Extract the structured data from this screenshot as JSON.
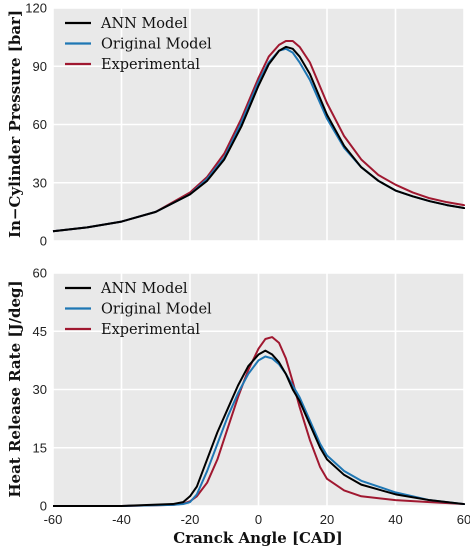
{
  "chart_data": [
    {
      "type": "line",
      "ylabel": "In−Cylinder Pressure [bar]",
      "xlabel": "",
      "xlim": [
        -60,
        60
      ],
      "ylim": [
        0,
        120
      ],
      "xticks": [
        "-60",
        "-40",
        "-20",
        "0",
        "20",
        "40",
        "60"
      ],
      "yticks": [
        "0",
        "30",
        "60",
        "90",
        "120"
      ],
      "grid": true,
      "legend": "top-left",
      "series": [
        {
          "name": "ANN Model",
          "color": "#000000",
          "x": [
            -61,
            -50,
            -40,
            -30,
            -20,
            -15,
            -10,
            -5,
            0,
            3,
            6,
            8,
            10,
            12,
            15,
            20,
            25,
            30,
            35,
            40,
            45,
            50,
            55,
            60,
            61
          ],
          "y": [
            5,
            7,
            10,
            15,
            24,
            31,
            42,
            59,
            80,
            91,
            98,
            100,
            99,
            95,
            86,
            65,
            49,
            38,
            31,
            26,
            23,
            20.5,
            18.5,
            17,
            16.5
          ]
        },
        {
          "name": "Original Model",
          "color": "#1f77b4",
          "x": [
            -61,
            -50,
            -40,
            -30,
            -20,
            -15,
            -10,
            -5,
            0,
            3,
            6,
            8,
            10,
            12,
            15,
            20,
            25,
            30,
            35,
            40,
            45,
            50,
            55,
            60,
            61
          ],
          "y": [
            5,
            7,
            10,
            15,
            24,
            32,
            43,
            61,
            82,
            92,
            98,
            99,
            97,
            92,
            83,
            63,
            48,
            38,
            31,
            26,
            23,
            20.5,
            18.5,
            17,
            16.5
          ]
        },
        {
          "name": "Experimental",
          "color": "#a01830",
          "x": [
            -61,
            -50,
            -40,
            -30,
            -20,
            -15,
            -10,
            -5,
            0,
            3,
            6,
            8,
            10,
            12,
            15,
            20,
            25,
            30,
            35,
            40,
            45,
            50,
            55,
            60,
            61
          ],
          "y": [
            5,
            7,
            10,
            15,
            25,
            33,
            45,
            63,
            84,
            95,
            101,
            103,
            103,
            100,
            92,
            71,
            54,
            42,
            34,
            29,
            25,
            22,
            20,
            18.5,
            18
          ]
        }
      ]
    },
    {
      "type": "line",
      "ylabel": "Heat Release Rate [J/deg]",
      "xlabel": "Cranck Angle [CAD]",
      "xlim": [
        -60,
        60
      ],
      "ylim": [
        0,
        60
      ],
      "xticks": [
        "-60",
        "-40",
        "-20",
        "0",
        "20",
        "40",
        "60"
      ],
      "yticks": [
        "0",
        "15",
        "30",
        "45",
        "60"
      ],
      "grid": true,
      "legend": "top-left",
      "series": [
        {
          "name": "ANN Model",
          "color": "#000000",
          "x": [
            -61,
            -40,
            -25,
            -22,
            -20,
            -18,
            -15,
            -12,
            -9,
            -6,
            -3,
            0,
            2,
            4,
            6,
            8,
            10,
            12,
            15,
            18,
            20,
            25,
            30,
            40,
            50,
            60,
            61
          ],
          "y": [
            0,
            0,
            0.5,
            1,
            2.5,
            5,
            12,
            19,
            25,
            31,
            36,
            39,
            40,
            39,
            37,
            34,
            30,
            27,
            21,
            15,
            12,
            8,
            5.5,
            3,
            1.5,
            0.5,
            0.3
          ]
        },
        {
          "name": "Original Model",
          "color": "#1f77b4",
          "x": [
            -61,
            -40,
            -25,
            -22,
            -20,
            -18,
            -15,
            -12,
            -9,
            -6,
            -3,
            0,
            2,
            4,
            6,
            8,
            10,
            12,
            15,
            18,
            20,
            25,
            30,
            40,
            50,
            60,
            61
          ],
          "y": [
            0,
            0,
            0.3,
            0.5,
            1,
            3,
            9,
            16,
            23,
            29,
            34,
            37.5,
            38.5,
            38,
            36.5,
            34,
            31,
            28,
            22,
            16,
            13,
            9,
            6.5,
            3.5,
            1.5,
            0.5,
            0.3
          ]
        },
        {
          "name": "Experimental",
          "color": "#a01830",
          "x": [
            -61,
            -40,
            -25,
            -22,
            -20,
            -18,
            -15,
            -12,
            -9,
            -6,
            -3,
            0,
            2,
            4,
            6,
            8,
            10,
            12,
            15,
            18,
            20,
            25,
            30,
            40,
            50,
            60,
            61
          ],
          "y": [
            0,
            0,
            0.3,
            0.6,
            1.2,
            2.5,
            6,
            12,
            20,
            28,
            35,
            40.5,
            43,
            43.5,
            42,
            38,
            32,
            25.5,
            17,
            10,
            7,
            4,
            2.5,
            1.5,
            1,
            0.5,
            0.3
          ]
        }
      ]
    }
  ]
}
